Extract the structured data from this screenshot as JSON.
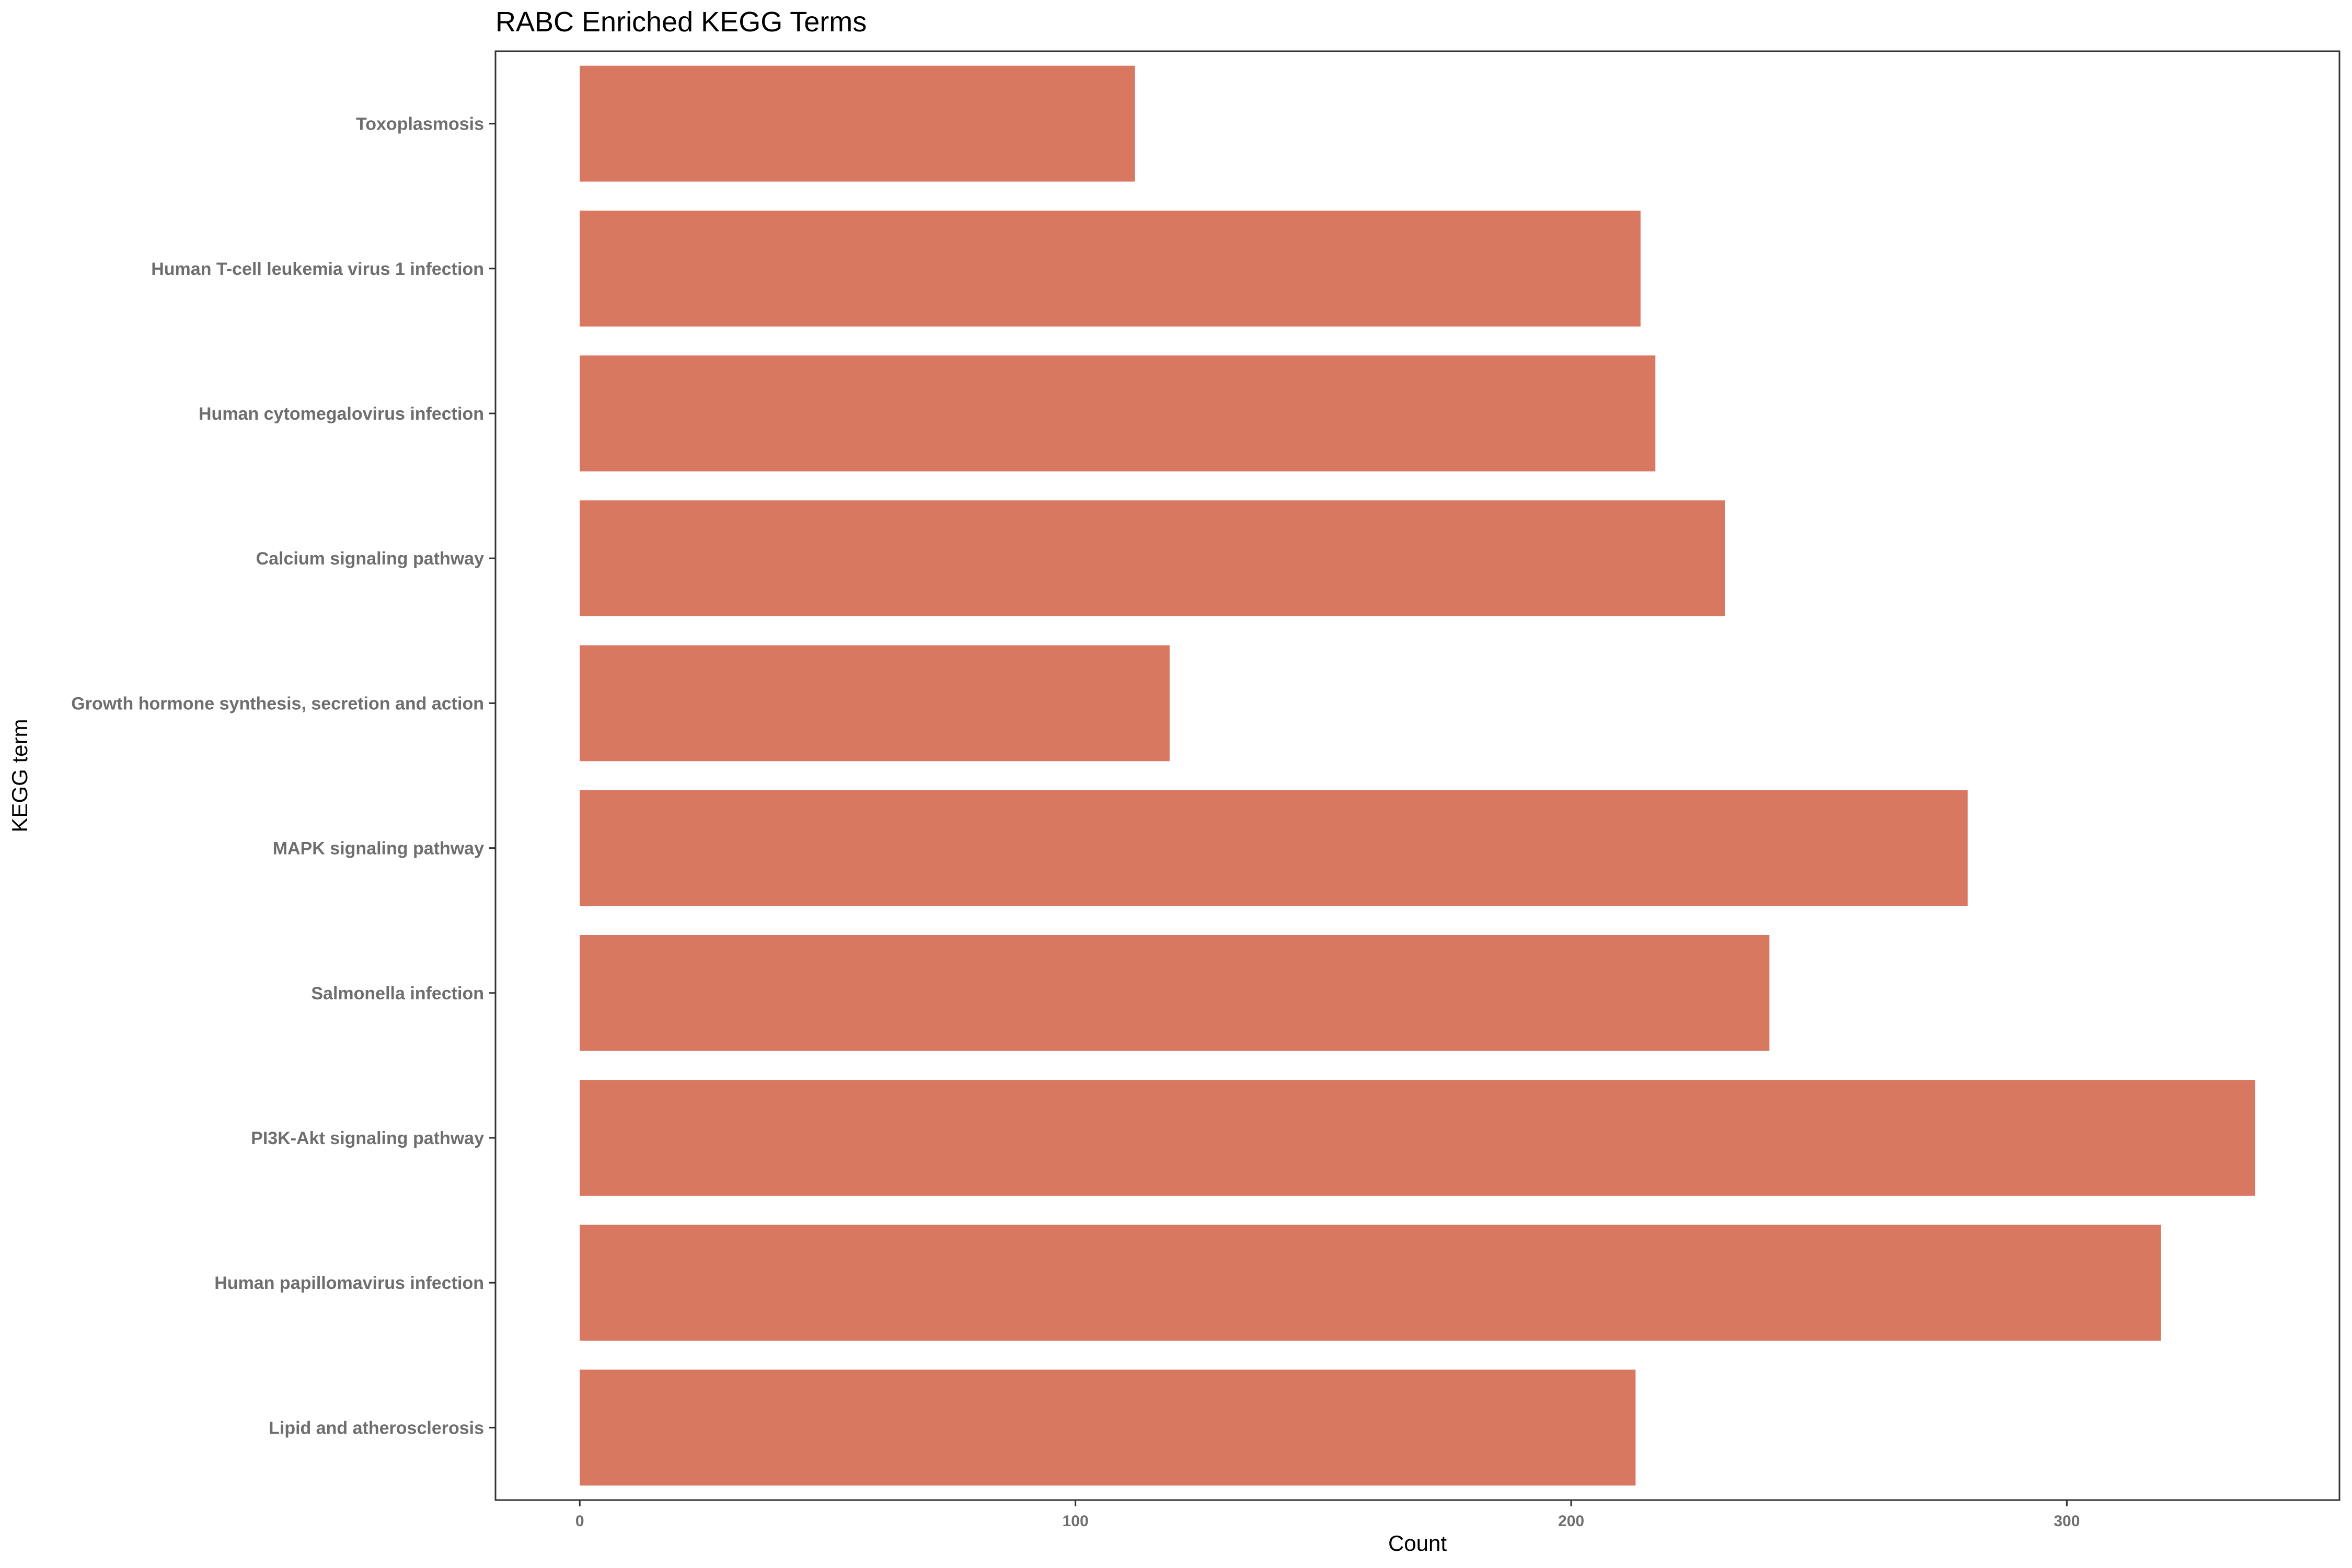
{
  "chart_data": {
    "type": "bar",
    "orientation": "horizontal",
    "title": "RABC Enriched KEGG Terms",
    "xlabel": "Count",
    "ylabel": "KEGG term",
    "categories": [
      "Toxoplasmosis",
      "Human T-cell leukemia virus 1 infection",
      "Human cytomegalovirus infection",
      "Calcium signaling pathway",
      "Growth hormone synthesis, secretion and action",
      "MAPK signaling pathway",
      "Salmonella infection",
      "PI3K-Akt signaling pathway",
      "Human papillomavirus infection",
      "Lipid and atherosclerosis"
    ],
    "values": [
      112,
      214,
      217,
      231,
      119,
      280,
      240,
      338,
      319,
      213
    ],
    "xlim": [
      -17,
      355
    ],
    "xticks": [
      0,
      100,
      200,
      300
    ],
    "bar_color": "#d97861",
    "grid": false,
    "legend": "none"
  }
}
